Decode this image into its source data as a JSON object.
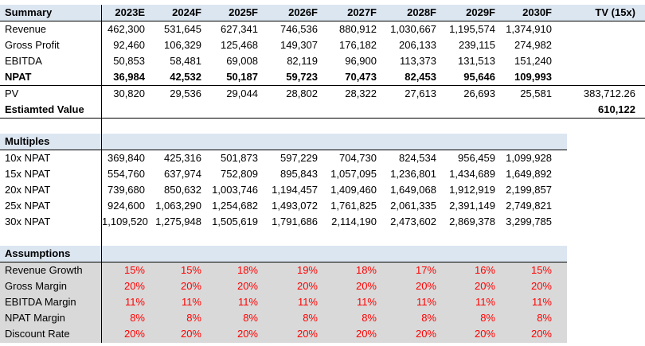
{
  "summary": {
    "title": "Summary",
    "years": [
      "2023E",
      "2024F",
      "2025F",
      "2026F",
      "2027F",
      "2028F",
      "2029F",
      "2030F",
      "TV (15x)"
    ],
    "rows": [
      {
        "label": "Revenue",
        "values": [
          "462,300",
          "531,645",
          "627,341",
          "746,536",
          "880,912",
          "1,030,667",
          "1,195,574",
          "1,374,910",
          ""
        ]
      },
      {
        "label": "Gross Profit",
        "values": [
          "92,460",
          "106,329",
          "125,468",
          "149,307",
          "176,182",
          "206,133",
          "239,115",
          "274,982",
          ""
        ]
      },
      {
        "label": "EBITDA",
        "values": [
          "50,853",
          "58,481",
          "69,008",
          "82,119",
          "96,900",
          "113,373",
          "131,513",
          "151,240",
          ""
        ]
      },
      {
        "label": "NPAT",
        "values": [
          "36,984",
          "42,532",
          "50,187",
          "59,723",
          "70,473",
          "82,453",
          "95,646",
          "109,993",
          ""
        ]
      },
      {
        "label": "PV",
        "values": [
          "30,820",
          "29,536",
          "29,044",
          "28,802",
          "28,322",
          "27,613",
          "26,693",
          "25,581",
          "383,712.26"
        ]
      },
      {
        "label": "Estiamted Value",
        "values": [
          "",
          "",
          "",
          "",
          "",
          "",
          "",
          "",
          "610,122"
        ]
      }
    ]
  },
  "multiples": {
    "title": "Multiples",
    "rows": [
      {
        "label": "10x NPAT",
        "values": [
          "369,840",
          "425,316",
          "501,873",
          "597,229",
          "704,730",
          "824,534",
          "956,459",
          "1,099,928"
        ]
      },
      {
        "label": "15x NPAT",
        "values": [
          "554,760",
          "637,974",
          "752,809",
          "895,843",
          "1,057,095",
          "1,236,801",
          "1,434,689",
          "1,649,892"
        ]
      },
      {
        "label": "20x NPAT",
        "values": [
          "739,680",
          "850,632",
          "1,003,746",
          "1,194,457",
          "1,409,460",
          "1,649,068",
          "1,912,919",
          "2,199,857"
        ]
      },
      {
        "label": "25x NPAT",
        "values": [
          "924,600",
          "1,063,290",
          "1,254,682",
          "1,493,072",
          "1,761,825",
          "2,061,335",
          "2,391,149",
          "2,749,821"
        ]
      },
      {
        "label": "30x NPAT",
        "values": [
          "1,109,520",
          "1,275,948",
          "1,505,619",
          "1,791,686",
          "2,114,190",
          "2,473,602",
          "2,869,378",
          "3,299,785"
        ]
      }
    ]
  },
  "assumptions": {
    "title": "Assumptions",
    "rows": [
      {
        "label": "Revenue Growth",
        "values": [
          "15%",
          "15%",
          "18%",
          "19%",
          "18%",
          "17%",
          "16%",
          "15%"
        ]
      },
      {
        "label": "Gross Margin",
        "values": [
          "20%",
          "20%",
          "20%",
          "20%",
          "20%",
          "20%",
          "20%",
          "20%"
        ]
      },
      {
        "label": "EBITDA Margin",
        "values": [
          "11%",
          "11%",
          "11%",
          "11%",
          "11%",
          "11%",
          "11%",
          "11%"
        ]
      },
      {
        "label": "NPAT Margin",
        "values": [
          "8%",
          "8%",
          "8%",
          "8%",
          "8%",
          "8%",
          "8%",
          "8%"
        ]
      },
      {
        "label": "Discount Rate",
        "values": [
          "20%",
          "20%",
          "20%",
          "20%",
          "20%",
          "20%",
          "20%",
          "20%"
        ]
      }
    ]
  },
  "colors": {
    "header_fill": "#dce6f1",
    "input_fill": "#d9d9d9",
    "input_text": "#ff0000"
  }
}
